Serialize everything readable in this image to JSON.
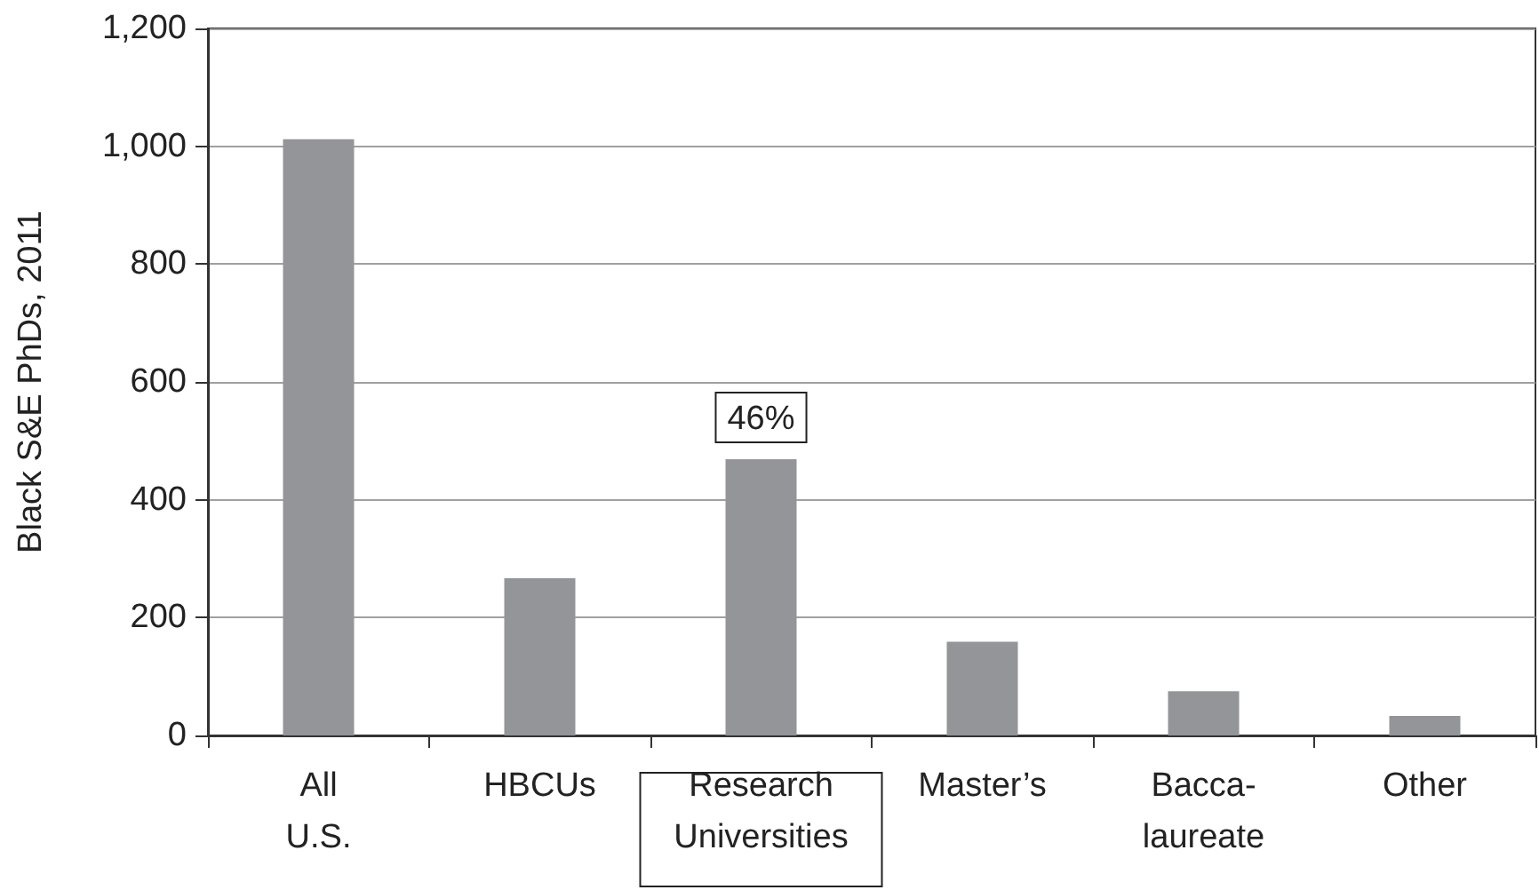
{
  "chart_data": {
    "type": "bar",
    "ylabel": "Black S&E PhDs, 2011",
    "categories": [
      "All\nU.S.",
      "HBCUs",
      "Research\nUniversities",
      "Master’s",
      "Bacca-\nlaureate",
      "Other"
    ],
    "values": [
      1012,
      267,
      469,
      159,
      75,
      33
    ],
    "color": "#939598",
    "ylim": [
      0,
      1200
    ],
    "yticks": [
      0,
      {
        "value": 200,
        "label": "200"
      },
      {
        "value": 400,
        "label": "400"
      },
      {
        "value": 600,
        "label": "600"
      },
      {
        "value": 800,
        "label": "800"
      },
      {
        "value": 1000,
        "label": "1,000"
      },
      {
        "value": 1200,
        "label": "1,200"
      }
    ],
    "grid": "y",
    "annotations": [
      {
        "text": "46%",
        "x": "Research\nUniversities",
        "y": 469
      }
    ]
  }
}
